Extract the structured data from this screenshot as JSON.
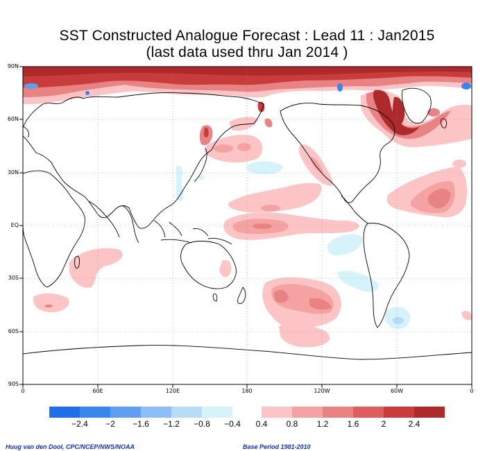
{
  "title": {
    "line1": "SST Constructed Analogue Forecast : Lead 11 : Jan2015",
    "line2": "(last data used thru Jan 2014 )"
  },
  "map": {
    "lat_labels": [
      "90N",
      "60N",
      "30N",
      "EQ",
      "30S",
      "60S",
      "90S"
    ],
    "lon_labels": [
      "0",
      "60E",
      "120E",
      "180",
      "120W",
      "60W",
      "0"
    ],
    "grid": "dotted"
  },
  "colorbar": {
    "negative_colors": [
      "#1f6fe8",
      "#3a86ec",
      "#5e9ff0",
      "#8cbef5",
      "#b6dcf8",
      "#d6f2fb"
    ],
    "positive_colors": [
      "#fcc4c4",
      "#f4a2a2",
      "#e98383",
      "#dc5e5e",
      "#c83c3c",
      "#ae2a2a"
    ],
    "labels": [
      "−2.4",
      "−2",
      "−1.6",
      "−1.2",
      "−0.8",
      "−0.4",
      "0.4",
      "0.8",
      "1.2",
      "1.6",
      "2",
      "2.4"
    ]
  },
  "credits": {
    "left": "Huug van den Dool, CPC/NCEP/NWS/NOAA",
    "right": "Base Period 1981-2010"
  }
}
